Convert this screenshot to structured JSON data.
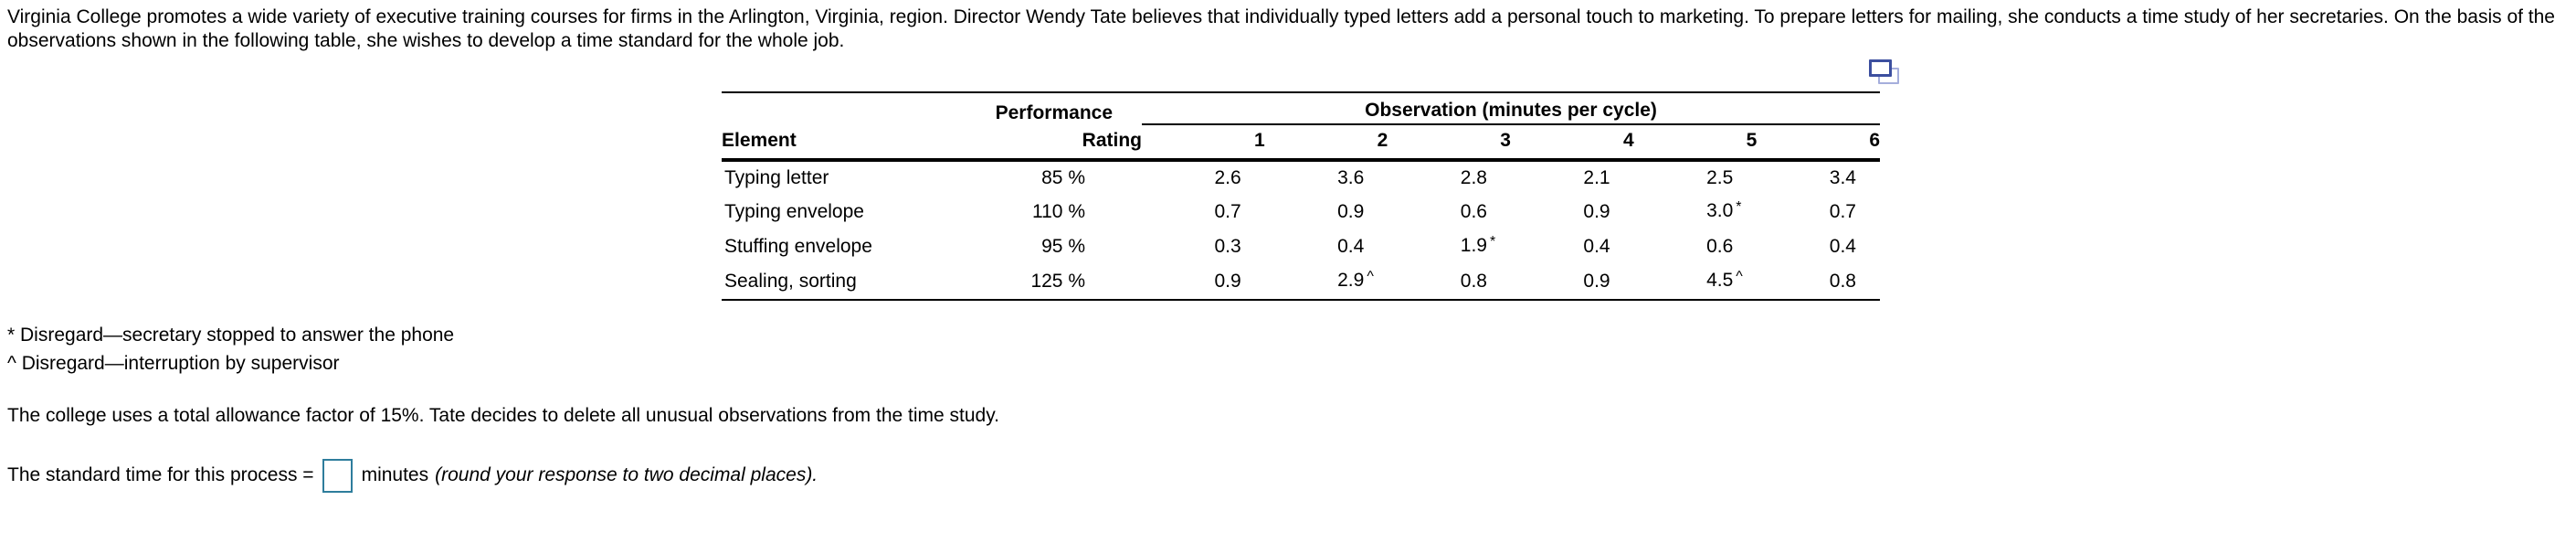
{
  "problem": {
    "intro": "Virginia College promotes a wide variety of executive training courses for firms in the Arlington, Virginia, region. Director Wendy Tate believes that individually typed letters add a personal touch to marketing. To prepare letters for mailing, she conducts a time study of her secretaries. On the basis of the observations shown in the following table, she wishes to develop a time standard for the whole job."
  },
  "table": {
    "headers": {
      "element": "Element",
      "performance_line1": "Performance",
      "performance_line2": "Rating",
      "observation_group": "Observation (minutes per cycle)",
      "observation_cols": [
        "1",
        "2",
        "3",
        "4",
        "5",
        "6"
      ]
    },
    "rows": [
      {
        "element": "Typing letter",
        "rating": "85 %",
        "obs": [
          {
            "v": "2.6",
            "m": ""
          },
          {
            "v": "3.6",
            "m": ""
          },
          {
            "v": "2.8",
            "m": ""
          },
          {
            "v": "2.1",
            "m": ""
          },
          {
            "v": "2.5",
            "m": ""
          },
          {
            "v": "3.4",
            "m": ""
          }
        ]
      },
      {
        "element": "Typing envelope",
        "rating": "110 %",
        "obs": [
          {
            "v": "0.7",
            "m": ""
          },
          {
            "v": "0.9",
            "m": ""
          },
          {
            "v": "0.6",
            "m": ""
          },
          {
            "v": "0.9",
            "m": ""
          },
          {
            "v": "3.0",
            "m": "*"
          },
          {
            "v": "0.7",
            "m": ""
          }
        ]
      },
      {
        "element": "Stuffing envelope",
        "rating": "95 %",
        "obs": [
          {
            "v": "0.3",
            "m": ""
          },
          {
            "v": "0.4",
            "m": ""
          },
          {
            "v": "1.9",
            "m": "*"
          },
          {
            "v": "0.4",
            "m": ""
          },
          {
            "v": "0.6",
            "m": ""
          },
          {
            "v": "0.4",
            "m": ""
          }
        ]
      },
      {
        "element": "Sealing, sorting",
        "rating": "125 %",
        "obs": [
          {
            "v": "0.9",
            "m": ""
          },
          {
            "v": "2.9",
            "m": "^"
          },
          {
            "v": "0.8",
            "m": ""
          },
          {
            "v": "0.9",
            "m": ""
          },
          {
            "v": "4.5",
            "m": "^"
          },
          {
            "v": "0.8",
            "m": ""
          }
        ]
      }
    ]
  },
  "footnotes": [
    "* Disregard—secretary stopped to answer the phone",
    "^ Disregard—interruption by supervisor"
  ],
  "allowance_text": "The college uses a total allowance factor of 15%. Tate decides to delete all unusual observations from the time study.",
  "answer": {
    "prefix": "The standard time for this process =",
    "input_value": "",
    "suffix": "minutes",
    "instruction": "(round your response to two decimal places)."
  },
  "icons": {
    "copy_table": "copy-table-icon"
  },
  "colors": {
    "text": "#000000",
    "input_border": "#2e7d9c",
    "copy_icon_front": "#3c4f9f",
    "copy_icon_back": "#a5aedc"
  }
}
